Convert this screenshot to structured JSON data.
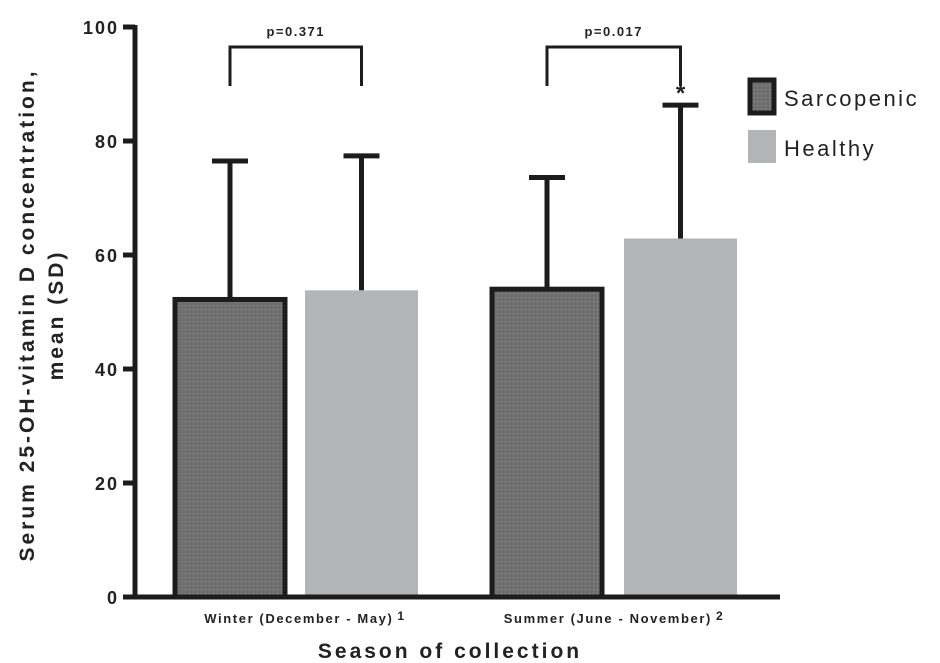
{
  "chart_data": {
    "type": "bar",
    "categories": [
      "Winter (December - May)",
      "Summer (June - November)"
    ],
    "category_superscripts": [
      "1",
      "2"
    ],
    "series": [
      {
        "name": "Sarcopenic",
        "values": [
          52.2,
          54.0
        ],
        "sd": [
          24.3,
          19.6
        ]
      },
      {
        "name": "Healthy",
        "values": [
          53.8,
          62.9
        ],
        "sd": [
          23.6,
          23.4
        ]
      }
    ],
    "xlabel": "Season of collection",
    "ylabel_lines": [
      "Serum 25-OH-vitamin D concentration,",
      "mean  (SD)"
    ],
    "ylim": [
      0,
      100
    ],
    "yticks": [
      "0",
      "20",
      "40",
      "60",
      "80",
      "100"
    ],
    "legend_position": "right",
    "comparisons": [
      {
        "label": "p=0.371",
        "category_index": 0
      },
      {
        "label": "p=0.017",
        "category_index": 1
      }
    ],
    "annotation": {
      "text": "*",
      "series_index": 1,
      "category_index": 1
    },
    "colors": {
      "sarcopenic_fill": "#6e6e6e",
      "sarcopenic_stroke": "#1c1c1c",
      "healthy_fill": "#b3b4b6",
      "axis": "#1c1c1c"
    }
  }
}
